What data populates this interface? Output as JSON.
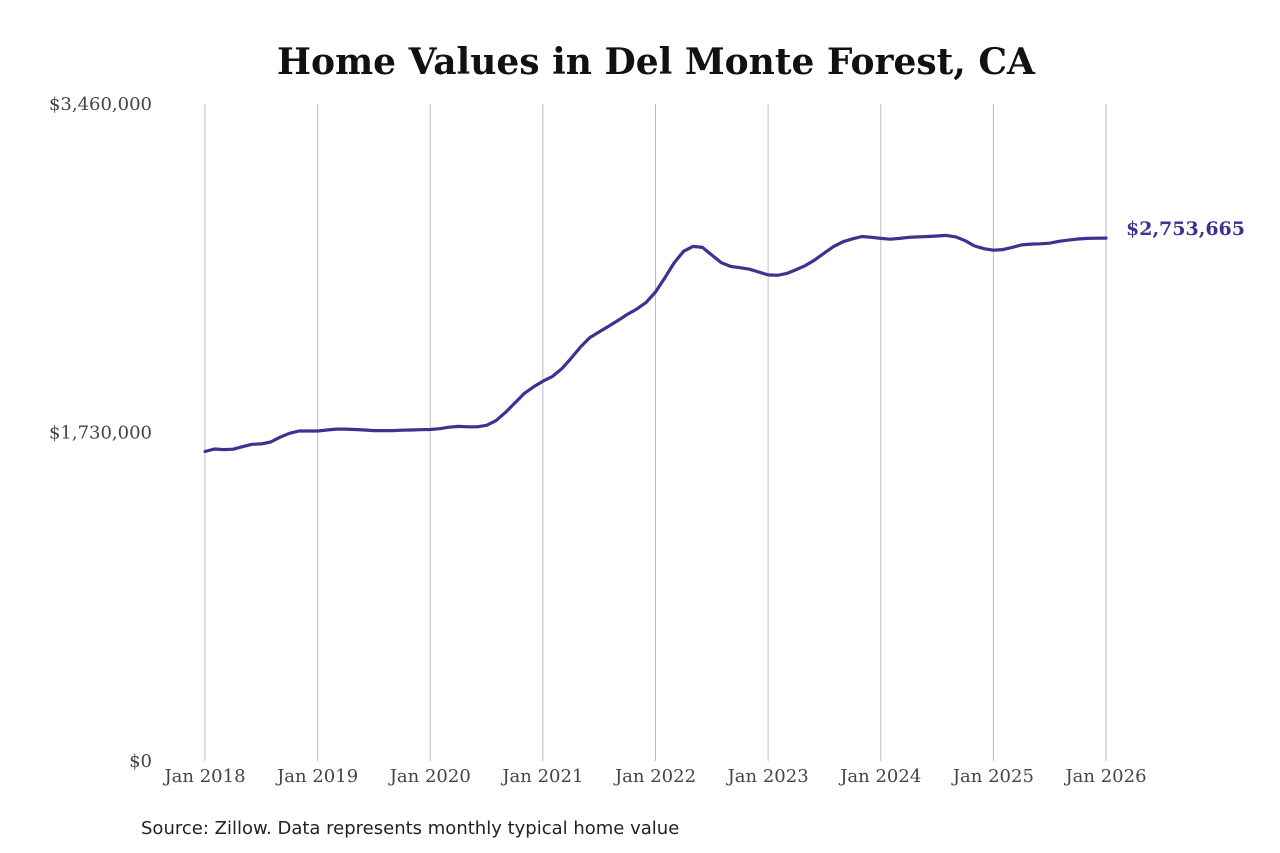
{
  "chart_data": {
    "type": "line",
    "title": "Home Values in Del Monte Forest, CA",
    "xlabel": "",
    "ylabel": "",
    "ylim": [
      0,
      3460000
    ],
    "grid": {
      "vertical": true,
      "horizontal": false
    },
    "y_ticks": [
      {
        "value": 0,
        "label": "$0"
      },
      {
        "value": 1730000,
        "label": "$1,730,000"
      },
      {
        "value": 3460000,
        "label": "$3,460,000"
      }
    ],
    "x_ticks": [
      {
        "value": "2018-01",
        "label": "Jan 2018"
      },
      {
        "value": "2019-01",
        "label": "Jan 2019"
      },
      {
        "value": "2020-01",
        "label": "Jan 2020"
      },
      {
        "value": "2021-01",
        "label": "Jan 2021"
      },
      {
        "value": "2022-01",
        "label": "Jan 2022"
      },
      {
        "value": "2023-01",
        "label": "Jan 2023"
      },
      {
        "value": "2024-01",
        "label": "Jan 2024"
      },
      {
        "value": "2025-01",
        "label": "Jan 2025"
      },
      {
        "value": "2026-01",
        "label": "Jan 2026"
      }
    ],
    "series": [
      {
        "color": "#3a3391",
        "x": [
          "2018-01",
          "2018-02",
          "2018-03",
          "2018-04",
          "2018-05",
          "2018-06",
          "2018-07",
          "2018-08",
          "2018-09",
          "2018-10",
          "2018-11",
          "2018-12",
          "2019-01",
          "2019-02",
          "2019-03",
          "2019-04",
          "2019-05",
          "2019-06",
          "2019-07",
          "2019-08",
          "2019-09",
          "2019-10",
          "2019-11",
          "2019-12",
          "2020-01",
          "2020-02",
          "2020-03",
          "2020-04",
          "2020-05",
          "2020-06",
          "2020-07",
          "2020-08",
          "2020-09",
          "2020-10",
          "2020-11",
          "2020-12",
          "2021-01",
          "2021-02",
          "2021-03",
          "2021-04",
          "2021-05",
          "2021-06",
          "2021-07",
          "2021-08",
          "2021-09",
          "2021-10",
          "2021-11",
          "2021-12",
          "2022-01",
          "2022-02",
          "2022-03",
          "2022-04",
          "2022-05",
          "2022-06",
          "2022-07",
          "2022-08",
          "2022-09",
          "2022-10",
          "2022-11",
          "2022-12",
          "2023-01",
          "2023-02",
          "2023-03",
          "2023-04",
          "2023-05",
          "2023-06",
          "2023-07",
          "2023-08",
          "2023-09",
          "2023-10",
          "2023-11",
          "2023-12",
          "2024-01",
          "2024-02",
          "2024-03",
          "2024-04",
          "2024-05",
          "2024-06",
          "2024-07",
          "2024-08",
          "2024-09",
          "2024-10",
          "2024-11",
          "2024-12",
          "2025-01",
          "2025-02",
          "2025-03",
          "2025-04",
          "2025-05",
          "2025-06",
          "2025-07",
          "2025-08",
          "2025-09",
          "2025-10",
          "2025-11",
          "2025-12",
          "2026-01"
        ],
        "values": [
          1630000,
          1643000,
          1640000,
          1642000,
          1655000,
          1668000,
          1670000,
          1680000,
          1705000,
          1726000,
          1738000,
          1738000,
          1738000,
          1743000,
          1748000,
          1748000,
          1746000,
          1743000,
          1740000,
          1740000,
          1740000,
          1742000,
          1743000,
          1745000,
          1746000,
          1750000,
          1758000,
          1762000,
          1760000,
          1760000,
          1768000,
          1792000,
          1835000,
          1885000,
          1935000,
          1970000,
          2000000,
          2025000,
          2065000,
          2120000,
          2180000,
          2230000,
          2260000,
          2290000,
          2320000,
          2352000,
          2380000,
          2415000,
          2470000,
          2545000,
          2625000,
          2685000,
          2710000,
          2705000,
          2665000,
          2625000,
          2605000,
          2598000,
          2590000,
          2575000,
          2560000,
          2558000,
          2568000,
          2588000,
          2610000,
          2640000,
          2676000,
          2710000,
          2735000,
          2750000,
          2762000,
          2758000,
          2752000,
          2748000,
          2752000,
          2758000,
          2760000,
          2762000,
          2765000,
          2768000,
          2760000,
          2740000,
          2712000,
          2698000,
          2690000,
          2693000,
          2705000,
          2718000,
          2722000,
          2724000,
          2727000,
          2737000,
          2743000,
          2749000,
          2752000,
          2753000,
          2753665
        ]
      }
    ],
    "end_label": "$2,753,665",
    "source_note": "Source: Zillow. Data represents monthly typical home value"
  }
}
